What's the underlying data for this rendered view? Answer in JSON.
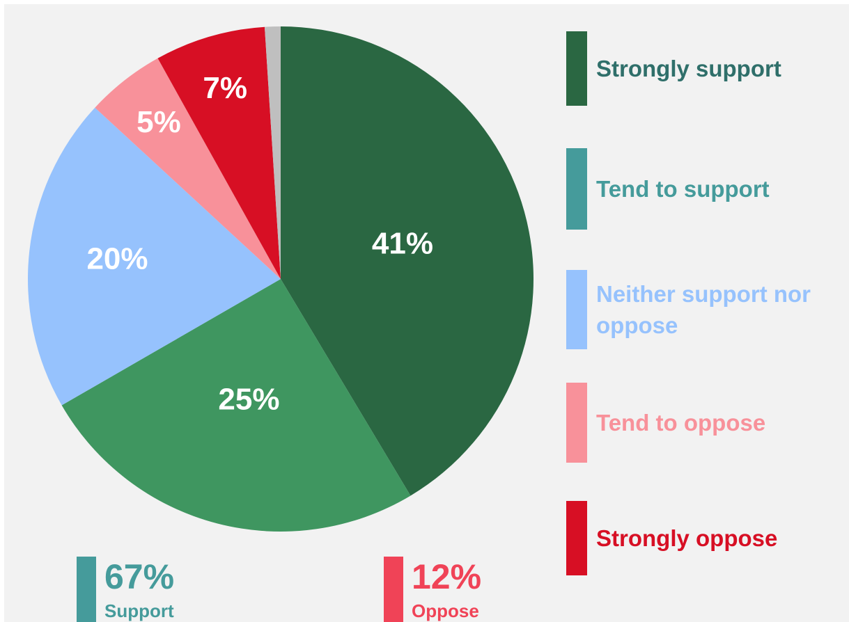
{
  "chart_data": {
    "type": "pie",
    "categories": [
      "Strongly support",
      "Tend to support",
      "Neither support nor oppose",
      "Tend to oppose",
      "Strongly oppose",
      null
    ],
    "values": [
      41,
      25,
      20,
      5,
      7,
      1
    ],
    "value_labels": [
      "41%",
      "25%",
      "20%",
      "5%",
      "7%",
      null
    ],
    "colors": [
      "#2a6742",
      "#3f9660",
      "#96c2fd",
      "#f8919a",
      "#d70f24",
      "#bfbfbf"
    ],
    "legend_colors": [
      "#2a6742",
      "#459b9b",
      "#96c2fd",
      "#f8919a",
      "#d70f24"
    ],
    "legend_text_colors": [
      "#2f6f6a",
      "#459b9b",
      "#96c2fd",
      "#f8919a",
      "#d70f24"
    ],
    "summary": [
      {
        "label": "67%",
        "name": "Support",
        "color": "#459b9b"
      },
      {
        "label": "12%",
        "name": "Oppose",
        "color": "#f04357"
      }
    ]
  }
}
